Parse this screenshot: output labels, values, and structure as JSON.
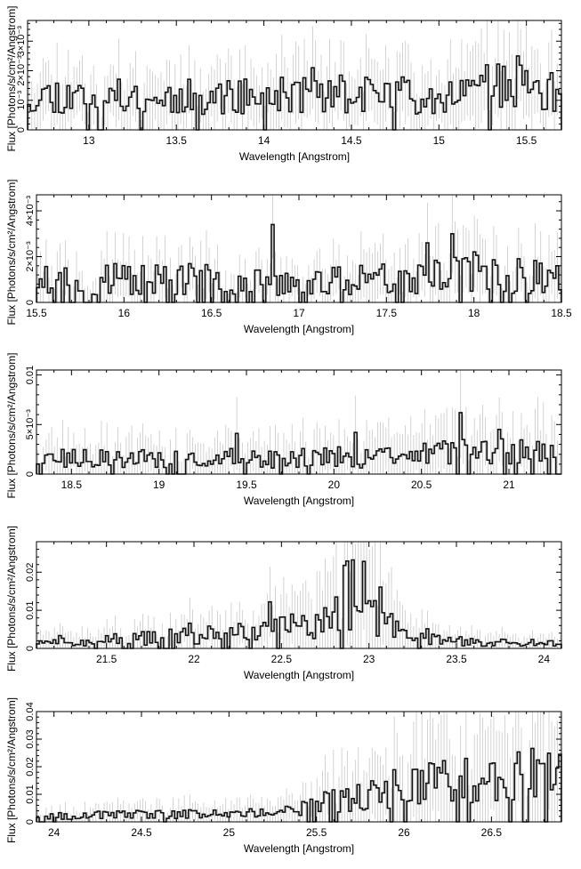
{
  "figure": {
    "ylabel": "Flux [Photons/s/cm²/Angstrom]",
    "xlabel": "Wavelength [Angstrom]"
  },
  "chart_data": [
    {
      "type": "step",
      "xlim": [
        12.65,
        15.7
      ],
      "ylim": [
        0,
        0.0037
      ],
      "xticks": [
        13,
        13.5,
        14,
        14.5,
        15,
        15.5
      ],
      "xtick_labels": [
        "13",
        "13.5",
        "14",
        "14.5",
        "15",
        "15.5"
      ],
      "yticks": [
        0,
        0.001,
        0.002,
        0.003
      ],
      "ytick_labels": [
        "0",
        "10⁻³",
        "2×10⁻³",
        "3×10⁻³"
      ],
      "xlabel": "Wavelength [Angstrom]",
      "ylabel": "Flux [Photons/s/cm²/Angstrom]",
      "profile": [
        [
          12.65,
          0.0012
        ],
        [
          13.5,
          0.0011
        ],
        [
          14.2,
          0.0012
        ],
        [
          15.0,
          0.0012
        ],
        [
          15.4,
          0.0015
        ],
        [
          15.7,
          0.0012
        ]
      ],
      "bins": 190,
      "amp": 0.55,
      "errfrac": 0.45,
      "seed": 11,
      "peaks": [
        [
          15.45,
          0.0025
        ],
        [
          15.28,
          0.0022
        ],
        [
          14.28,
          0.0021
        ]
      ]
    },
    {
      "type": "step",
      "xlim": [
        15.5,
        18.5
      ],
      "ylim": [
        0,
        0.0047
      ],
      "xticks": [
        15.5,
        16,
        16.5,
        17,
        17.5,
        18,
        18.5
      ],
      "xtick_labels": [
        "15.5",
        "16",
        "16.5",
        "17",
        "17.5",
        "18",
        "18.5"
      ],
      "yticks": [
        0,
        0.002,
        0.004
      ],
      "ytick_labels": [
        "0",
        "2×10⁻³",
        "4×10⁻³"
      ],
      "xlabel": "Wavelength [Angstrom]",
      "ylabel": "Flux [Photons/s/cm²/Angstrom]",
      "profile": [
        [
          15.5,
          0.001
        ],
        [
          16.5,
          0.001
        ],
        [
          17.0,
          0.0008
        ],
        [
          17.5,
          0.0012
        ],
        [
          18.0,
          0.0013
        ],
        [
          18.5,
          0.0011
        ]
      ],
      "bins": 190,
      "amp": 0.7,
      "errfrac": 0.6,
      "seed": 23,
      "peaks": [
        [
          16.85,
          0.0034
        ],
        [
          17.88,
          0.003
        ],
        [
          17.74,
          0.0026
        ]
      ]
    },
    {
      "type": "step",
      "xlim": [
        18.3,
        21.3
      ],
      "ylim": [
        0,
        0.0105
      ],
      "xticks": [
        18.5,
        19,
        19.5,
        20,
        20.5,
        21
      ],
      "xtick_labels": [
        "18.5",
        "19",
        "19.5",
        "20",
        "20.5",
        "21"
      ],
      "yticks": [
        0,
        0.005,
        0.01
      ],
      "ytick_labels": [
        "0",
        "5×10⁻³",
        "0.01"
      ],
      "xlabel": "Wavelength [Angstrom]",
      "ylabel": "Flux [Photons/s/cm²/Angstrom]",
      "profile": [
        [
          18.3,
          0.0015
        ],
        [
          19.5,
          0.0016
        ],
        [
          20.2,
          0.0017
        ],
        [
          20.7,
          0.0022
        ],
        [
          21.3,
          0.0024
        ]
      ],
      "bins": 190,
      "amp": 0.65,
      "errfrac": 0.9,
      "seed": 37,
      "peaks": [
        [
          20.72,
          0.0062
        ],
        [
          20.95,
          0.0045
        ],
        [
          20.12,
          0.0042
        ],
        [
          19.45,
          0.0041
        ]
      ]
    },
    {
      "type": "step",
      "xlim": [
        21.1,
        24.1
      ],
      "ylim": [
        0,
        0.028
      ],
      "xticks": [
        21.5,
        22,
        22.5,
        23,
        23.5,
        24
      ],
      "xtick_labels": [
        "21.5",
        "22",
        "22.5",
        "23",
        "23.5",
        "24"
      ],
      "yticks": [
        0,
        0.01,
        0.02
      ],
      "ytick_labels": [
        "0",
        "0.01",
        "0.02"
      ],
      "xlabel": "Wavelength [Angstrom]",
      "ylabel": "Flux [Photons/s/cm²/Angstrom]",
      "profile": [
        [
          21.1,
          0.0018
        ],
        [
          21.8,
          0.0028
        ],
        [
          22.4,
          0.0045
        ],
        [
          22.75,
          0.008
        ],
        [
          22.95,
          0.018
        ],
        [
          23.1,
          0.007
        ],
        [
          23.4,
          0.002
        ],
        [
          24.1,
          0.0015
        ]
      ],
      "bins": 190,
      "amp": 0.7,
      "errfrac": 0.9,
      "seed": 51,
      "peaks": [
        [
          23.0,
          0.0125
        ],
        [
          22.82,
          0.0135
        ],
        [
          22.44,
          0.0122
        ],
        [
          21.98,
          0.0066
        ]
      ]
    },
    {
      "type": "step",
      "xlim": [
        23.9,
        26.9
      ],
      "ylim": [
        0,
        0.04
      ],
      "xticks": [
        24,
        24.5,
        25,
        25.5,
        26,
        26.5
      ],
      "xtick_labels": [
        "24",
        "24.5",
        "25",
        "25.5",
        "26",
        "26.5"
      ],
      "yticks": [
        0,
        0.01,
        0.02,
        0.03,
        0.04
      ],
      "ytick_labels": [
        "0",
        "0.01",
        "0.02",
        "0.03",
        "0.04"
      ],
      "xlabel": "Wavelength [Angstrom]",
      "ylabel": "Flux [Photons/s/cm²/Angstrom]",
      "profile": [
        [
          23.9,
          0.0022
        ],
        [
          25.3,
          0.0032
        ],
        [
          25.6,
          0.008
        ],
        [
          26.0,
          0.0135
        ],
        [
          26.9,
          0.018
        ]
      ],
      "bins": 190,
      "amp": 0.6,
      "errfrac": 0.9,
      "seed": 67,
      "peaks": [
        [
          25.74,
          0.0135
        ],
        [
          26.18,
          0.0123
        ],
        [
          26.67,
          0.0172
        ],
        [
          25.88,
          0.0105
        ]
      ]
    }
  ]
}
